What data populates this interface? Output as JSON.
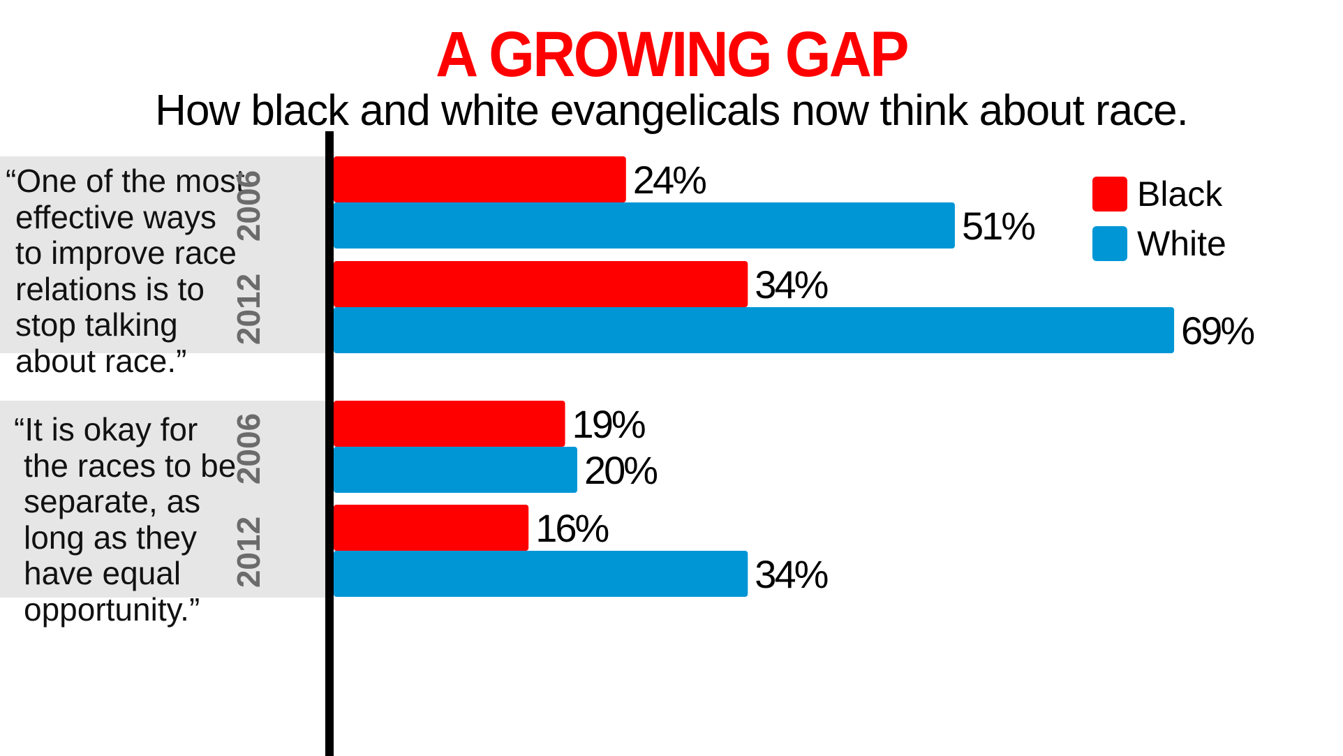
{
  "header": {
    "title": "A GROWING GAP",
    "subtitle": "How black and white evangelicals now think about race."
  },
  "colors": {
    "black_series": "#ff0000",
    "white_series": "#0096d6",
    "title": "#ff0000",
    "panel_bg": "#e6e6e6",
    "year_label": "#6b6b6b",
    "axis": "#000000"
  },
  "groups": [
    {
      "quote": [
        "“One of the most",
        "effective ways",
        "to improve race",
        "relations is to",
        "stop talking",
        "about race.”"
      ],
      "years": [
        "2006",
        "2012"
      ]
    },
    {
      "quote": [
        "“It is okay for",
        "the races to be",
        "separate, as",
        "long as they",
        "have equal",
        "opportunity.”"
      ],
      "years": [
        "2006",
        "2012"
      ]
    }
  ],
  "legend": [
    {
      "label": "Black",
      "color": "#ff0000"
    },
    {
      "label": "White",
      "color": "#0096d6"
    }
  ],
  "chart_data": {
    "type": "bar",
    "orientation": "horizontal",
    "title": "A GROWING GAP",
    "subtitle": "How black and white evangelicals now think about race.",
    "xlabel": "",
    "ylabel": "",
    "xlim": [
      0,
      100
    ],
    "grid": false,
    "legend_position": "top-right",
    "categories": [
      "One of the most effective ways to improve race relations is to stop talking about race. — 2006",
      "One of the most effective ways to improve race relations is to stop talking about race. — 2012",
      "It is okay for the races to be separate, as long as they have equal opportunity. — 2006",
      "It is okay for the races to be separate, as long as they have equal opportunity. — 2012"
    ],
    "series": [
      {
        "name": "Black",
        "color": "#ff0000",
        "values": [
          24,
          34,
          19,
          16
        ],
        "labels": [
          "24%",
          "34%",
          "19%",
          "16%"
        ]
      },
      {
        "name": "White",
        "color": "#0096d6",
        "values": [
          51,
          69,
          20,
          34
        ],
        "labels": [
          "51%",
          "69%",
          "20%",
          "34%"
        ]
      }
    ]
  }
}
